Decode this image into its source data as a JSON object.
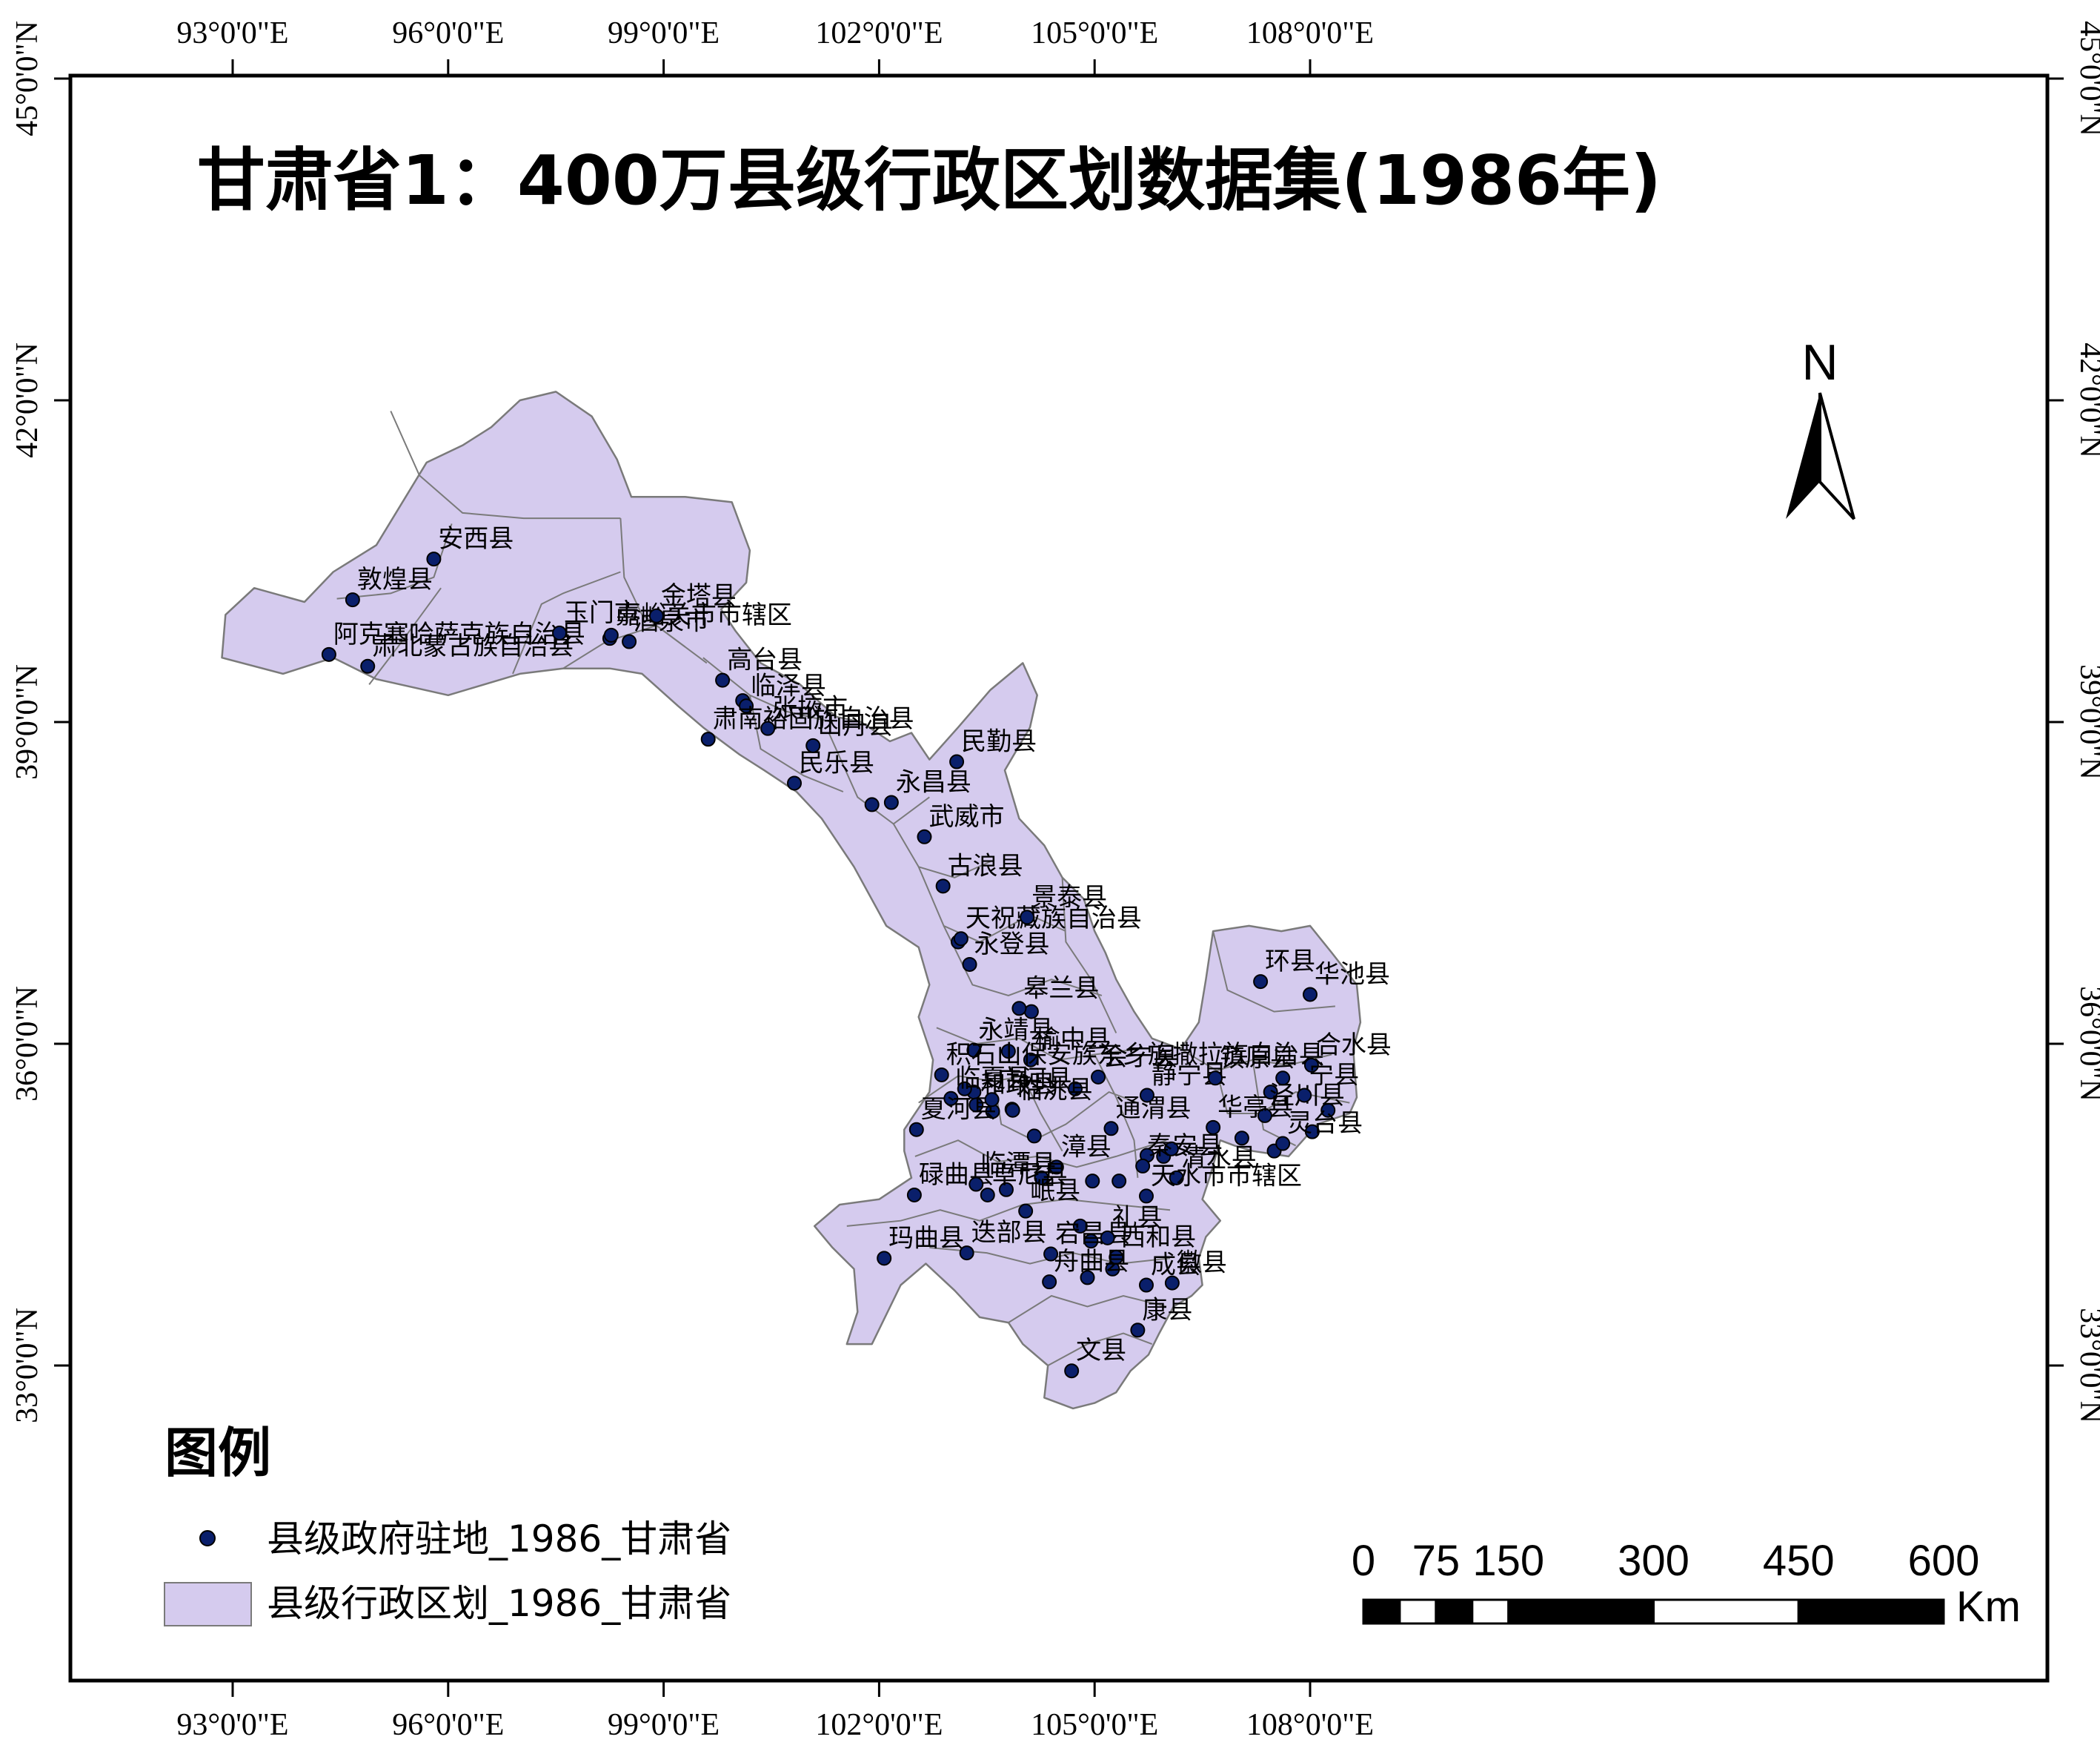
{
  "title": "甘肃省1：400万县级行政区划数据集(1986年)",
  "lon_ticks": [
    {
      "deg": 93,
      "label": "93°0'0\"E"
    },
    {
      "deg": 96,
      "label": "96°0'0\"E"
    },
    {
      "deg": 99,
      "label": "99°0'0\"E"
    },
    {
      "deg": 102,
      "label": "102°0'0\"E"
    },
    {
      "deg": 105,
      "label": "105°0'0\"E"
    },
    {
      "deg": 108,
      "label": "108°0'0\"E"
    }
  ],
  "lat_ticks": [
    {
      "deg": 45,
      "label": "45°0'0\"N"
    },
    {
      "deg": 42,
      "label": "42°0'0\"N"
    },
    {
      "deg": 39,
      "label": "39°0'0\"N"
    },
    {
      "deg": 36,
      "label": "36°0'0\"N"
    },
    {
      "deg": 33,
      "label": "33°0'0\"N"
    }
  ],
  "north_arrow": {
    "letter": "N"
  },
  "counties": [
    {
      "name": "安西县",
      "lon": 95.8,
      "lat": 40.52
    },
    {
      "name": "敦煌县",
      "lon": 94.67,
      "lat": 40.14
    },
    {
      "name": "阿克塞哈萨克族自治县",
      "lon": 94.34,
      "lat": 39.63
    },
    {
      "name": "肃北蒙古族自治县",
      "lon": 94.88,
      "lat": 39.52
    },
    {
      "name": "玉门市",
      "lon": 97.55,
      "lat": 39.83
    },
    {
      "name": "嘉峪关市市辖区",
      "lon": 98.27,
      "lat": 39.81
    },
    {
      "name": "酒泉市",
      "lon": 98.52,
      "lat": 39.75
    },
    {
      "name": "金塔县",
      "lon": 98.9,
      "lat": 39.99
    },
    {
      "name": "高台县",
      "lon": 99.82,
      "lat": 39.39
    },
    {
      "name": "临泽县",
      "lon": 100.15,
      "lat": 39.15
    },
    {
      "name": "肃南裕固族自治县",
      "lon": 99.62,
      "lat": 38.84
    },
    {
      "name": "张掖市",
      "lon": 100.45,
      "lat": 38.94
    },
    {
      "name": "民乐县",
      "lon": 100.82,
      "lat": 38.43
    },
    {
      "name": "山丹县",
      "lon": 101.08,
      "lat": 38.78
    },
    {
      "name": "永昌县",
      "lon": 102.17,
      "lat": 38.25
    },
    {
      "name": "民勤县",
      "lon": 103.08,
      "lat": 38.63
    },
    {
      "name": "武威市",
      "lon": 102.63,
      "lat": 37.93
    },
    {
      "name": "古浪县",
      "lon": 102.89,
      "lat": 37.47
    },
    {
      "name": "天祝藏族自治县",
      "lon": 103.14,
      "lat": 36.98
    },
    {
      "name": "景泰县",
      "lon": 104.06,
      "lat": 37.18
    },
    {
      "name": "永登县",
      "lon": 103.26,
      "lat": 36.74
    },
    {
      "name": "皋兰县",
      "lon": 103.95,
      "lat": 36.33
    },
    {
      "name": "永靖县",
      "lon": 103.32,
      "lat": 35.94
    },
    {
      "name": "榆中县",
      "lon": 104.11,
      "lat": 35.85
    },
    {
      "name": "积石山保安族东乡族撒拉族自治县",
      "lon": 102.87,
      "lat": 35.71
    },
    {
      "name": "临夏县",
      "lon": 103.0,
      "lat": 35.49
    },
    {
      "name": "和政县",
      "lon": 103.35,
      "lat": 35.43
    },
    {
      "name": "夏河县",
      "lon": 102.52,
      "lat": 35.2
    },
    {
      "name": "临洮县",
      "lon": 103.86,
      "lat": 35.38
    },
    {
      "name": "广河县",
      "lon": 103.57,
      "lat": 35.48
    },
    {
      "name": "会宁县",
      "lon": 105.05,
      "lat": 35.69
    },
    {
      "name": "通渭县",
      "lon": 105.23,
      "lat": 35.21
    },
    {
      "name": "静宁县",
      "lon": 105.73,
      "lat": 35.52
    },
    {
      "name": "漳县",
      "lon": 104.47,
      "lat": 34.85
    },
    {
      "name": "秦安县",
      "lon": 105.67,
      "lat": 34.86
    },
    {
      "name": "碌曲县",
      "lon": 102.49,
      "lat": 34.59
    },
    {
      "name": "临潭县",
      "lon": 103.35,
      "lat": 34.69
    },
    {
      "name": "卓尼县",
      "lon": 103.51,
      "lat": 34.59
    },
    {
      "name": "岷县",
      "lon": 104.04,
      "lat": 34.44
    },
    {
      "name": "清水县",
      "lon": 106.14,
      "lat": 34.75
    },
    {
      "name": "玛曲县",
      "lon": 102.07,
      "lat": 34.0
    },
    {
      "name": "迭部县",
      "lon": 103.22,
      "lat": 34.05
    },
    {
      "name": "宕昌县",
      "lon": 104.39,
      "lat": 34.04
    },
    {
      "name": "礼县",
      "lon": 105.18,
      "lat": 34.19
    },
    {
      "name": "天水市市辖区",
      "lon": 105.72,
      "lat": 34.58
    },
    {
      "name": "西和县",
      "lon": 105.3,
      "lat": 34.01
    },
    {
      "name": "成县",
      "lon": 105.72,
      "lat": 33.75
    },
    {
      "name": "徽县",
      "lon": 106.08,
      "lat": 33.77
    },
    {
      "name": "舟曲县",
      "lon": 104.37,
      "lat": 33.78
    },
    {
      "name": "康县",
      "lon": 105.6,
      "lat": 33.33
    },
    {
      "name": "文县",
      "lon": 104.68,
      "lat": 32.95
    },
    {
      "name": "环县",
      "lon": 107.31,
      "lat": 36.58
    },
    {
      "name": "华池县",
      "lon": 108.0,
      "lat": 36.46
    },
    {
      "name": "合水县",
      "lon": 108.02,
      "lat": 35.8
    },
    {
      "name": "镇原县",
      "lon": 106.68,
      "lat": 35.68
    },
    {
      "name": "泾川县",
      "lon": 107.37,
      "lat": 35.33
    },
    {
      "name": "宁县",
      "lon": 107.92,
      "lat": 35.52
    },
    {
      "name": "华亭县",
      "lon": 106.65,
      "lat": 35.22
    },
    {
      "name": "灵台县",
      "lon": 107.62,
      "lat": 35.07
    }
  ],
  "extra_points": [
    {
      "lon": 98.25,
      "lat": 39.78
    },
    {
      "lon": 100.1,
      "lat": 39.2
    },
    {
      "lon": 101.9,
      "lat": 38.23
    },
    {
      "lon": 103.1,
      "lat": 36.95
    },
    {
      "lon": 104.12,
      "lat": 36.3
    },
    {
      "lon": 103.8,
      "lat": 35.93
    },
    {
      "lon": 103.32,
      "lat": 35.55
    },
    {
      "lon": 103.19,
      "lat": 35.58
    },
    {
      "lon": 103.58,
      "lat": 35.37
    },
    {
      "lon": 103.85,
      "lat": 35.39
    },
    {
      "lon": 104.16,
      "lat": 35.14
    },
    {
      "lon": 104.73,
      "lat": 35.58
    },
    {
      "lon": 105.73,
      "lat": 34.96
    },
    {
      "lon": 105.34,
      "lat": 34.72
    },
    {
      "lon": 105.96,
      "lat": 34.95
    },
    {
      "lon": 104.97,
      "lat": 34.72
    },
    {
      "lon": 104.26,
      "lat": 34.75
    },
    {
      "lon": 103.77,
      "lat": 34.64
    },
    {
      "lon": 104.8,
      "lat": 34.3
    },
    {
      "lon": 104.95,
      "lat": 34.16
    },
    {
      "lon": 104.9,
      "lat": 33.82
    },
    {
      "lon": 105.25,
      "lat": 33.9
    },
    {
      "lon": 107.05,
      "lat": 35.12
    },
    {
      "lon": 107.45,
      "lat": 35.55
    },
    {
      "lon": 107.5,
      "lat": 35.0
    },
    {
      "lon": 108.25,
      "lat": 35.38
    },
    {
      "lon": 108.03,
      "lat": 35.18
    },
    {
      "lon": 107.62,
      "lat": 35.68
    },
    {
      "lon": 106.07,
      "lat": 35.02
    }
  ],
  "legend": {
    "title": "图例",
    "point_label": "县级政府驻地_1986_甘肃省",
    "polygon_label": "县级行政区划_1986_甘肃省"
  },
  "scale_bar": {
    "labels": [
      "0",
      "75",
      "150",
      "300",
      "450",
      "600"
    ],
    "unit": "Km"
  },
  "colors": {
    "province_fill": "#d5cbee",
    "boundary": "#7a7a7a",
    "point": "#0a1f6b"
  }
}
